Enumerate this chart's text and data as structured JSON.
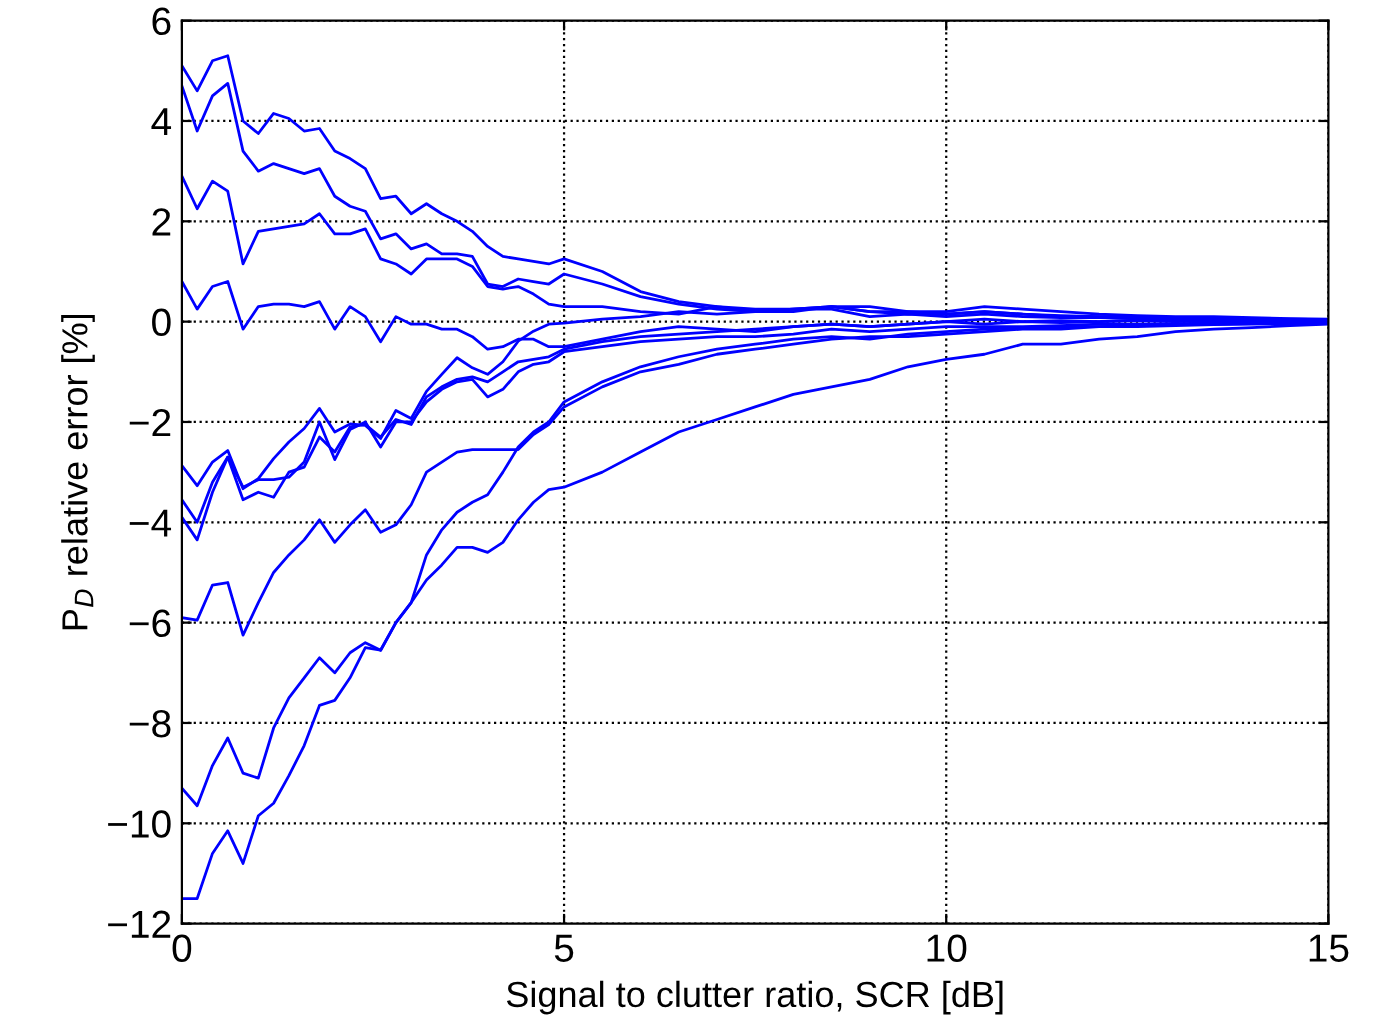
{
  "chart_data": {
    "type": "line",
    "xlabel": "Signal to clutter ratio, SCR [dB]",
    "ylabel": "P$_{D}$ relative error [%]",
    "x": [
      0,
      0.2,
      0.4,
      0.6,
      0.8,
      1.0,
      1.2,
      1.4,
      1.6,
      1.8,
      2.0,
      2.2,
      2.4,
      2.6,
      2.8,
      3.0,
      3.2,
      3.4,
      3.6,
      3.8,
      4.0,
      4.2,
      4.4,
      4.6,
      4.8,
      5.0,
      5.5,
      6,
      6.5,
      7,
      7.5,
      8,
      8.5,
      9,
      9.5,
      10,
      10.5,
      11,
      11.5,
      12,
      12.5,
      13,
      13.5,
      14,
      14.5,
      15
    ],
    "xlim": [
      0,
      15
    ],
    "xticks": [
      0,
      5,
      10,
      15
    ],
    "ylim": [
      -12,
      6
    ],
    "yticks": [
      -12,
      -10,
      -8,
      -6,
      -4,
      -2,
      0,
      2,
      4,
      6
    ],
    "grid": true,
    "line_style": "solid",
    "marker": "none",
    "series": [
      {
        "color": "#0000ff",
        "values": [
          5.1,
          4.6,
          5.2,
          5.3,
          4.0,
          3.75,
          4.15,
          4.05,
          3.8,
          3.85,
          3.4,
          3.25,
          3.05,
          2.45,
          2.5,
          2.15,
          2.35,
          2.15,
          2.0,
          1.8,
          1.5,
          1.3,
          1.25,
          1.2,
          1.15,
          1.25,
          1.0,
          0.6,
          0.4,
          0.3,
          0.25,
          0.25,
          0.3,
          0.3,
          0.2,
          0.2,
          0.3,
          0.25,
          0.2,
          0.15,
          0.12,
          0.1,
          0.1,
          0.08,
          0.06,
          0.05
        ]
      },
      {
        "color": "#0000ff",
        "values": [
          4.7,
          3.8,
          4.5,
          4.75,
          3.4,
          3.0,
          3.15,
          3.05,
          2.95,
          3.05,
          2.5,
          2.3,
          2.2,
          1.65,
          1.75,
          1.45,
          1.55,
          1.35,
          1.35,
          1.3,
          0.75,
          0.7,
          0.85,
          0.8,
          0.75,
          0.95,
          0.75,
          0.5,
          0.35,
          0.25,
          0.2,
          0.2,
          0.3,
          0.2,
          0.15,
          0.15,
          0.2,
          0.15,
          0.12,
          0.1,
          0.1,
          0.08,
          0.07,
          0.05,
          0.05,
          0.04
        ]
      },
      {
        "color": "#0000ff",
        "values": [
          2.9,
          2.25,
          2.8,
          2.6,
          1.15,
          1.8,
          1.85,
          1.9,
          1.95,
          2.15,
          1.75,
          1.75,
          1.85,
          1.25,
          1.15,
          0.95,
          1.25,
          1.25,
          1.25,
          1.1,
          0.7,
          0.65,
          0.7,
          0.55,
          0.35,
          0.3,
          0.3,
          0.2,
          0.15,
          0.3,
          0.2,
          0.25,
          0.25,
          0.1,
          0.15,
          0.1,
          0.15,
          0.1,
          0.08,
          0.08,
          0.06,
          0.05,
          0.05,
          0.04,
          0.03,
          0.03
        ]
      },
      {
        "color": "#0000ff",
        "values": [
          0.8,
          0.25,
          0.7,
          0.8,
          -0.15,
          0.3,
          0.35,
          0.35,
          0.3,
          0.4,
          -0.15,
          0.3,
          0.1,
          -0.4,
          0.1,
          -0.05,
          -0.05,
          -0.15,
          -0.15,
          -0.3,
          -0.55,
          -0.5,
          -0.35,
          -0.35,
          -0.5,
          -0.5,
          -0.35,
          -0.2,
          -0.1,
          -0.15,
          -0.2,
          -0.1,
          -0.05,
          -0.1,
          -0.05,
          0,
          -0.05,
          0,
          -0.02,
          0,
          0.02,
          0,
          0.02,
          0.01,
          0,
          0
        ]
      },
      {
        "color": "#0000ff",
        "values": [
          -2.87,
          -3.27,
          -2.8,
          -2.57,
          -3.33,
          -3.13,
          -2.73,
          -2.4,
          -2.13,
          -1.73,
          -2.2,
          -2.04,
          -2.07,
          -2.33,
          -1.77,
          -1.93,
          -1.39,
          -1.05,
          -0.72,
          -0.92,
          -1.05,
          -0.8,
          -0.39,
          -0.19,
          -0.05,
          -0.03,
          0.05,
          0.1,
          0.2,
          0.15,
          0.2,
          0.25,
          0.3,
          0.2,
          0.2,
          0.15,
          0.2,
          0.15,
          0.1,
          0.1,
          0.1,
          0.08,
          0.06,
          0.05,
          0.04,
          0.03
        ]
      },
      {
        "color": "#0000ff",
        "values": [
          -3.55,
          -4.0,
          -3.2,
          -2.7,
          -3.55,
          -3.4,
          -3.5,
          -3.0,
          -2.9,
          -2.3,
          -2.6,
          -2.1,
          -2.05,
          -2.3,
          -1.95,
          -2.05,
          -1.5,
          -1.3,
          -1.15,
          -1.1,
          -1.2,
          -1.0,
          -0.8,
          -0.75,
          -0.7,
          -0.55,
          -0.4,
          -0.3,
          -0.25,
          -0.2,
          -0.15,
          -0.1,
          -0.05,
          -0.1,
          -0.05,
          0.0,
          0.05,
          0.0,
          0.02,
          0.0,
          0.03,
          0.02,
          0.0,
          0.01,
          0.0,
          0.0
        ]
      },
      {
        "color": "#0000ff",
        "values": [
          -3.9,
          -4.35,
          -3.4,
          -2.7,
          -3.3,
          -3.15,
          -3.15,
          -3.1,
          -2.8,
          -2.0,
          -2.75,
          -2.15,
          -2.0,
          -2.5,
          -2.0,
          -2.0,
          -1.6,
          -1.35,
          -1.2,
          -1.15,
          -1.5,
          -1.35,
          -1.0,
          -0.85,
          -0.8,
          -0.6,
          -0.5,
          -0.4,
          -0.35,
          -0.3,
          -0.3,
          -0.25,
          -0.15,
          -0.2,
          -0.15,
          -0.1,
          -0.1,
          -0.1,
          -0.08,
          -0.05,
          -0.05,
          -0.04,
          -0.03,
          -0.03,
          -0.02,
          -0.02
        ]
      },
      {
        "color": "#0000ff",
        "values": [
          -5.9,
          -5.95,
          -5.25,
          -5.2,
          -6.25,
          -5.6,
          -5.0,
          -4.65,
          -4.35,
          -3.95,
          -4.4,
          -4.05,
          -3.75,
          -4.2,
          -4.05,
          -3.65,
          -3.0,
          -2.8,
          -2.6,
          -2.55,
          -2.55,
          -2.55,
          -2.55,
          -2.25,
          -2.05,
          -1.7,
          -1.3,
          -1.0,
          -0.85,
          -0.65,
          -0.55,
          -0.45,
          -0.35,
          -0.3,
          -0.3,
          -0.25,
          -0.2,
          -0.15,
          -0.15,
          -0.1,
          -0.1,
          -0.08,
          -0.06,
          -0.05,
          -0.04,
          -0.03
        ]
      },
      {
        "color": "#0000ff",
        "values": [
          -9.3,
          -9.65,
          -8.85,
          -8.3,
          -9.0,
          -9.1,
          -8.1,
          -7.5,
          -7.1,
          -6.7,
          -7.0,
          -6.6,
          -6.4,
          -6.55,
          -6.0,
          -5.6,
          -4.65,
          -4.15,
          -3.8,
          -3.6,
          -3.45,
          -3.0,
          -2.5,
          -2.2,
          -2.0,
          -1.6,
          -1.2,
          -0.9,
          -0.7,
          -0.55,
          -0.45,
          -0.35,
          -0.3,
          -0.35,
          -0.25,
          -0.2,
          -0.15,
          -0.12,
          -0.1,
          -0.1,
          -0.08,
          -0.06,
          -0.05,
          -0.04,
          -0.03,
          -0.02
        ]
      },
      {
        "color": "#0000ff",
        "values": [
          -11.5,
          -11.5,
          -10.6,
          -10.15,
          -10.8,
          -9.85,
          -9.6,
          -9.05,
          -8.45,
          -7.65,
          -7.55,
          -7.1,
          -6.5,
          -6.55,
          -6.0,
          -5.6,
          -5.15,
          -4.85,
          -4.5,
          -4.5,
          -4.6,
          -4.4,
          -3.95,
          -3.6,
          -3.35,
          -3.3,
          -3.0,
          -2.6,
          -2.2,
          -1.95,
          -1.7,
          -1.45,
          -1.3,
          -1.15,
          -0.9,
          -0.75,
          -0.65,
          -0.45,
          -0.45,
          -0.35,
          -0.3,
          -0.2,
          -0.15,
          -0.12,
          -0.08,
          -0.05
        ]
      }
    ]
  }
}
